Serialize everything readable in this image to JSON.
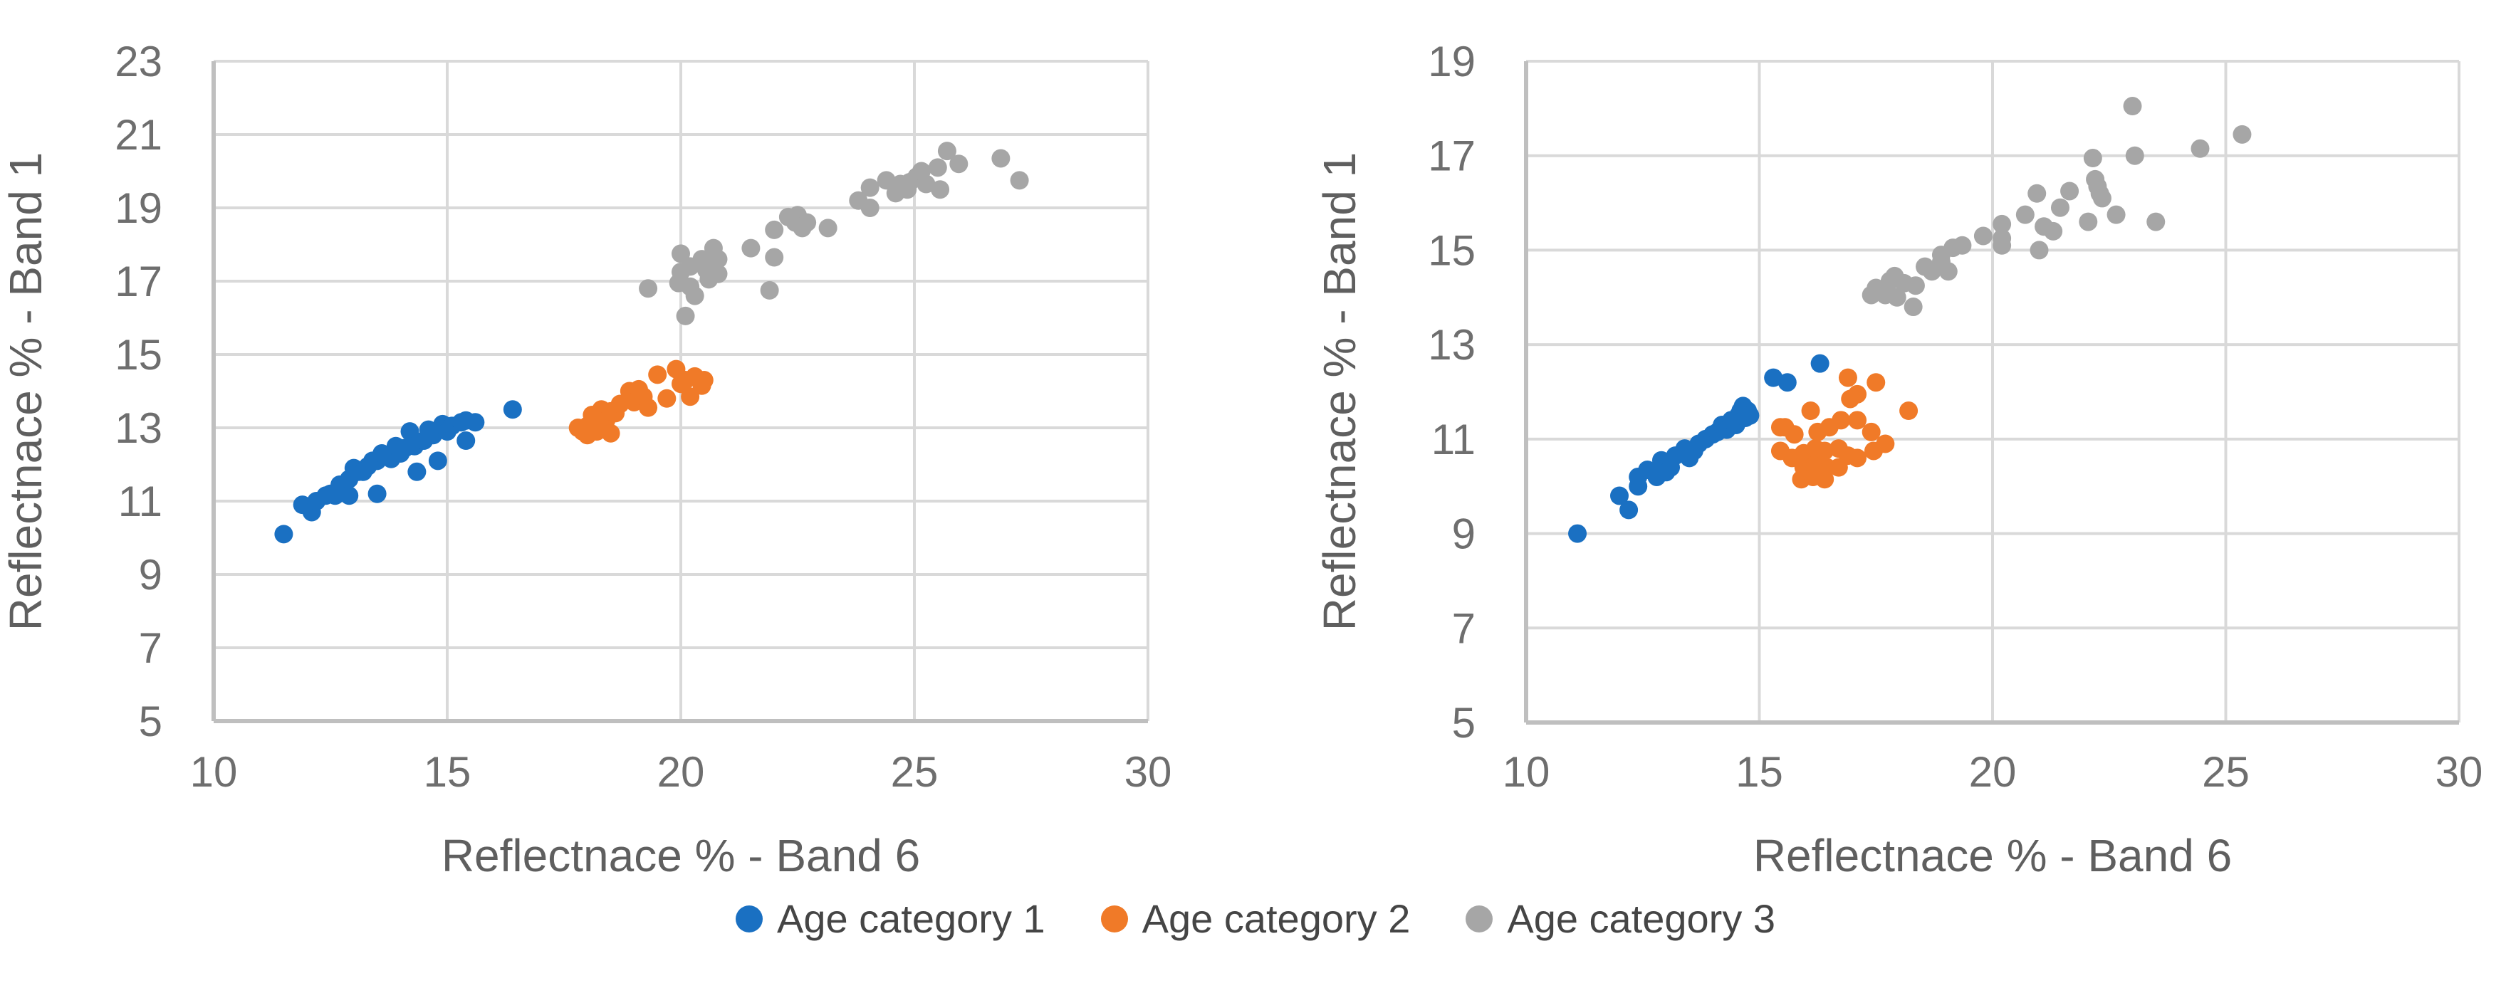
{
  "page": {
    "background": "#ffffff"
  },
  "colors": {
    "series1": "#1A70C2",
    "series2": "#F07A28",
    "series3": "#A6A6A6",
    "gridline": "#D9D9D9",
    "axis_line": "#BFBFBF",
    "tick_text": "#6E6E6E",
    "title_text": "#5F5F5F",
    "legend_text": "#454545"
  },
  "legend": {
    "position": "bottom-center",
    "items": [
      {
        "label": "Age category 1",
        "color": "#1A70C2"
      },
      {
        "label": "Age category 2",
        "color": "#F07A28"
      },
      {
        "label": "Age category 3",
        "color": "#A6A6A6"
      }
    ]
  },
  "chart_data": [
    {
      "type": "scatter",
      "title": "",
      "xlabel": "Reflectnace % - Band 6",
      "ylabel": "Reflectnace % - Band 1",
      "xlim": [
        10,
        30
      ],
      "ylim": [
        5,
        23
      ],
      "xticks": [
        10,
        15,
        20,
        25,
        30
      ],
      "yticks": [
        5,
        7,
        9,
        11,
        13,
        15,
        17,
        19,
        21,
        23
      ],
      "grid": true,
      "series": [
        {
          "name": "Age category 1",
          "color": "#1A70C2",
          "points": [
            [
              11.5,
              10.1
            ],
            [
              11.9,
              10.9
            ],
            [
              12.1,
              10.7
            ],
            [
              12.2,
              11.0
            ],
            [
              12.4,
              11.15
            ],
            [
              12.5,
              11.2
            ],
            [
              12.6,
              11.15
            ],
            [
              12.7,
              11.45
            ],
            [
              12.9,
              11.15
            ],
            [
              12.9,
              11.6
            ],
            [
              13.0,
              11.9
            ],
            [
              13.1,
              11.8
            ],
            [
              13.2,
              11.8
            ],
            [
              13.3,
              11.95
            ],
            [
              13.4,
              12.1
            ],
            [
              13.5,
              11.2
            ],
            [
              13.5,
              12.1
            ],
            [
              13.6,
              12.3
            ],
            [
              13.8,
              12.15
            ],
            [
              13.9,
              12.5
            ],
            [
              14.0,
              12.3
            ],
            [
              14.1,
              12.45
            ],
            [
              14.2,
              12.9
            ],
            [
              14.3,
              12.5
            ],
            [
              14.35,
              11.8
            ],
            [
              14.5,
              12.65
            ],
            [
              14.6,
              12.95
            ],
            [
              14.7,
              12.8
            ],
            [
              14.8,
              12.1
            ],
            [
              14.9,
              13.1
            ],
            [
              15.0,
              12.9
            ],
            [
              15.1,
              13.05
            ],
            [
              15.3,
              13.15
            ],
            [
              15.4,
              12.65
            ],
            [
              15.4,
              13.2
            ],
            [
              15.6,
              13.15
            ],
            [
              16.4,
              13.5
            ]
          ]
        },
        {
          "name": "Age category 2",
          "color": "#F07A28",
          "points": [
            [
              17.8,
              13.0
            ],
            [
              17.9,
              12.9
            ],
            [
              18.0,
              13.05
            ],
            [
              18.0,
              12.8
            ],
            [
              18.1,
              13.35
            ],
            [
              18.2,
              12.9
            ],
            [
              18.25,
              13.2
            ],
            [
              18.3,
              13.5
            ],
            [
              18.4,
              13.2
            ],
            [
              18.5,
              12.85
            ],
            [
              18.5,
              13.45
            ],
            [
              18.6,
              13.4
            ],
            [
              18.7,
              13.65
            ],
            [
              18.9,
              14.0
            ],
            [
              19.0,
              13.7
            ],
            [
              19.1,
              14.05
            ],
            [
              19.2,
              13.85
            ],
            [
              19.3,
              13.55
            ],
            [
              19.5,
              14.45
            ],
            [
              19.7,
              13.8
            ],
            [
              19.9,
              14.6
            ],
            [
              20.0,
              14.2
            ],
            [
              20.1,
              14.3
            ],
            [
              20.2,
              13.85
            ],
            [
              20.3,
              14.4
            ],
            [
              20.45,
              14.15
            ],
            [
              20.5,
              14.3
            ]
          ]
        },
        {
          "name": "Age category 3",
          "color": "#A6A6A6",
          "points": [
            [
              19.3,
              16.8
            ],
            [
              19.95,
              16.95
            ],
            [
              20.0,
              17.75
            ],
            [
              20.0,
              17.25
            ],
            [
              20.1,
              16.05
            ],
            [
              20.2,
              17.4
            ],
            [
              20.2,
              16.85
            ],
            [
              20.3,
              16.6
            ],
            [
              20.45,
              17.6
            ],
            [
              20.55,
              17.3
            ],
            [
              20.6,
              17.05
            ],
            [
              20.7,
              17.9
            ],
            [
              20.8,
              17.6
            ],
            [
              20.8,
              17.2
            ],
            [
              21.5,
              17.9
            ],
            [
              21.9,
              16.75
            ],
            [
              22.0,
              17.65
            ],
            [
              22.0,
              18.4
            ],
            [
              22.3,
              18.75
            ],
            [
              22.45,
              18.6
            ],
            [
              22.5,
              18.8
            ],
            [
              22.6,
              18.45
            ],
            [
              22.7,
              18.6
            ],
            [
              23.15,
              18.45
            ],
            [
              23.8,
              19.2
            ],
            [
              24.05,
              19.55
            ],
            [
              24.05,
              19.0
            ],
            [
              24.4,
              19.75
            ],
            [
              24.6,
              19.4
            ],
            [
              24.7,
              19.65
            ],
            [
              24.85,
              19.5
            ],
            [
              24.9,
              19.7
            ],
            [
              25.05,
              19.85
            ],
            [
              25.15,
              20.0
            ],
            [
              25.25,
              19.65
            ],
            [
              25.5,
              20.1
            ],
            [
              25.55,
              19.5
            ],
            [
              25.7,
              20.55
            ],
            [
              25.95,
              20.2
            ],
            [
              26.85,
              20.35
            ],
            [
              27.25,
              19.75
            ]
          ]
        }
      ]
    },
    {
      "type": "scatter",
      "title": "",
      "xlabel": "Reflectnace % - Band 6",
      "ylabel": "Reflectnace % - Band 1",
      "xlim": [
        10,
        30
      ],
      "ylim": [
        5,
        19
      ],
      "xticks": [
        10,
        15,
        20,
        25,
        30
      ],
      "yticks": [
        5,
        7,
        9,
        11,
        13,
        15,
        17,
        19
      ],
      "grid": true,
      "series": [
        {
          "name": "Age category 1",
          "color": "#1A70C2",
          "points": [
            [
              11.1,
              9.0
            ],
            [
              12.0,
              9.8
            ],
            [
              12.2,
              9.5
            ],
            [
              12.4,
              10.0
            ],
            [
              12.4,
              10.2
            ],
            [
              12.6,
              10.35
            ],
            [
              12.8,
              10.2
            ],
            [
              12.9,
              10.55
            ],
            [
              13.0,
              10.3
            ],
            [
              13.1,
              10.4
            ],
            [
              13.2,
              10.65
            ],
            [
              13.4,
              10.8
            ],
            [
              13.5,
              10.6
            ],
            [
              13.6,
              10.75
            ],
            [
              13.7,
              10.9
            ],
            [
              13.85,
              11.0
            ],
            [
              14.0,
              11.1
            ],
            [
              14.1,
              11.15
            ],
            [
              14.2,
              11.3
            ],
            [
              14.3,
              11.2
            ],
            [
              14.4,
              11.4
            ],
            [
              14.5,
              11.3
            ],
            [
              14.55,
              11.5
            ],
            [
              14.6,
              11.6
            ],
            [
              14.65,
              11.7
            ],
            [
              14.7,
              11.45
            ],
            [
              14.75,
              11.6
            ],
            [
              14.8,
              11.5
            ],
            [
              15.3,
              12.3
            ],
            [
              15.6,
              12.2
            ],
            [
              16.3,
              12.6
            ]
          ]
        },
        {
          "name": "Age category 2",
          "color": "#F07A28",
          "points": [
            [
              15.45,
              10.75
            ],
            [
              15.45,
              11.25
            ],
            [
              15.55,
              11.25
            ],
            [
              15.7,
              10.6
            ],
            [
              15.75,
              11.1
            ],
            [
              15.9,
              10.15
            ],
            [
              15.95,
              10.4
            ],
            [
              15.95,
              10.7
            ],
            [
              16.1,
              11.6
            ],
            [
              16.15,
              10.2
            ],
            [
              16.2,
              10.45
            ],
            [
              16.2,
              10.8
            ],
            [
              16.25,
              11.15
            ],
            [
              16.4,
              10.15
            ],
            [
              16.4,
              10.75
            ],
            [
              16.45,
              10.4
            ],
            [
              16.5,
              11.25
            ],
            [
              16.7,
              10.4
            ],
            [
              16.7,
              10.8
            ],
            [
              16.75,
              11.4
            ],
            [
              16.9,
              10.65
            ],
            [
              16.9,
              12.3
            ],
            [
              16.95,
              11.85
            ],
            [
              17.1,
              10.6
            ],
            [
              17.1,
              11.4
            ],
            [
              17.1,
              11.95
            ],
            [
              17.4,
              11.15
            ],
            [
              17.45,
              10.75
            ],
            [
              17.5,
              12.2
            ],
            [
              17.7,
              10.9
            ],
            [
              18.2,
              11.6
            ]
          ]
        },
        {
          "name": "Age category 3",
          "color": "#A6A6A6",
          "points": [
            [
              17.4,
              14.05
            ],
            [
              17.5,
              14.2
            ],
            [
              17.7,
              14.05
            ],
            [
              17.8,
              14.35
            ],
            [
              17.9,
              14.45
            ],
            [
              17.95,
              14.0
            ],
            [
              18.1,
              14.3
            ],
            [
              18.3,
              13.8
            ],
            [
              18.35,
              14.25
            ],
            [
              18.55,
              14.65
            ],
            [
              18.7,
              14.55
            ],
            [
              18.9,
              14.75
            ],
            [
              18.9,
              14.9
            ],
            [
              19.05,
              14.55
            ],
            [
              19.15,
              15.05
            ],
            [
              19.35,
              15.1
            ],
            [
              19.8,
              15.3
            ],
            [
              20.2,
              15.25
            ],
            [
              20.2,
              15.55
            ],
            [
              20.2,
              15.1
            ],
            [
              20.7,
              15.75
            ],
            [
              20.95,
              16.2
            ],
            [
              21.0,
              15.0
            ],
            [
              21.1,
              15.5
            ],
            [
              21.3,
              15.4
            ],
            [
              21.45,
              15.9
            ],
            [
              21.65,
              16.25
            ],
            [
              22.05,
              15.6
            ],
            [
              22.15,
              16.95
            ],
            [
              22.2,
              16.5
            ],
            [
              22.25,
              16.35
            ],
            [
              22.3,
              16.2
            ],
            [
              22.35,
              16.1
            ],
            [
              22.65,
              15.75
            ],
            [
              23.0,
              18.05
            ],
            [
              23.05,
              17.0
            ],
            [
              23.5,
              15.6
            ],
            [
              24.45,
              17.15
            ],
            [
              25.35,
              17.45
            ]
          ]
        }
      ]
    }
  ]
}
